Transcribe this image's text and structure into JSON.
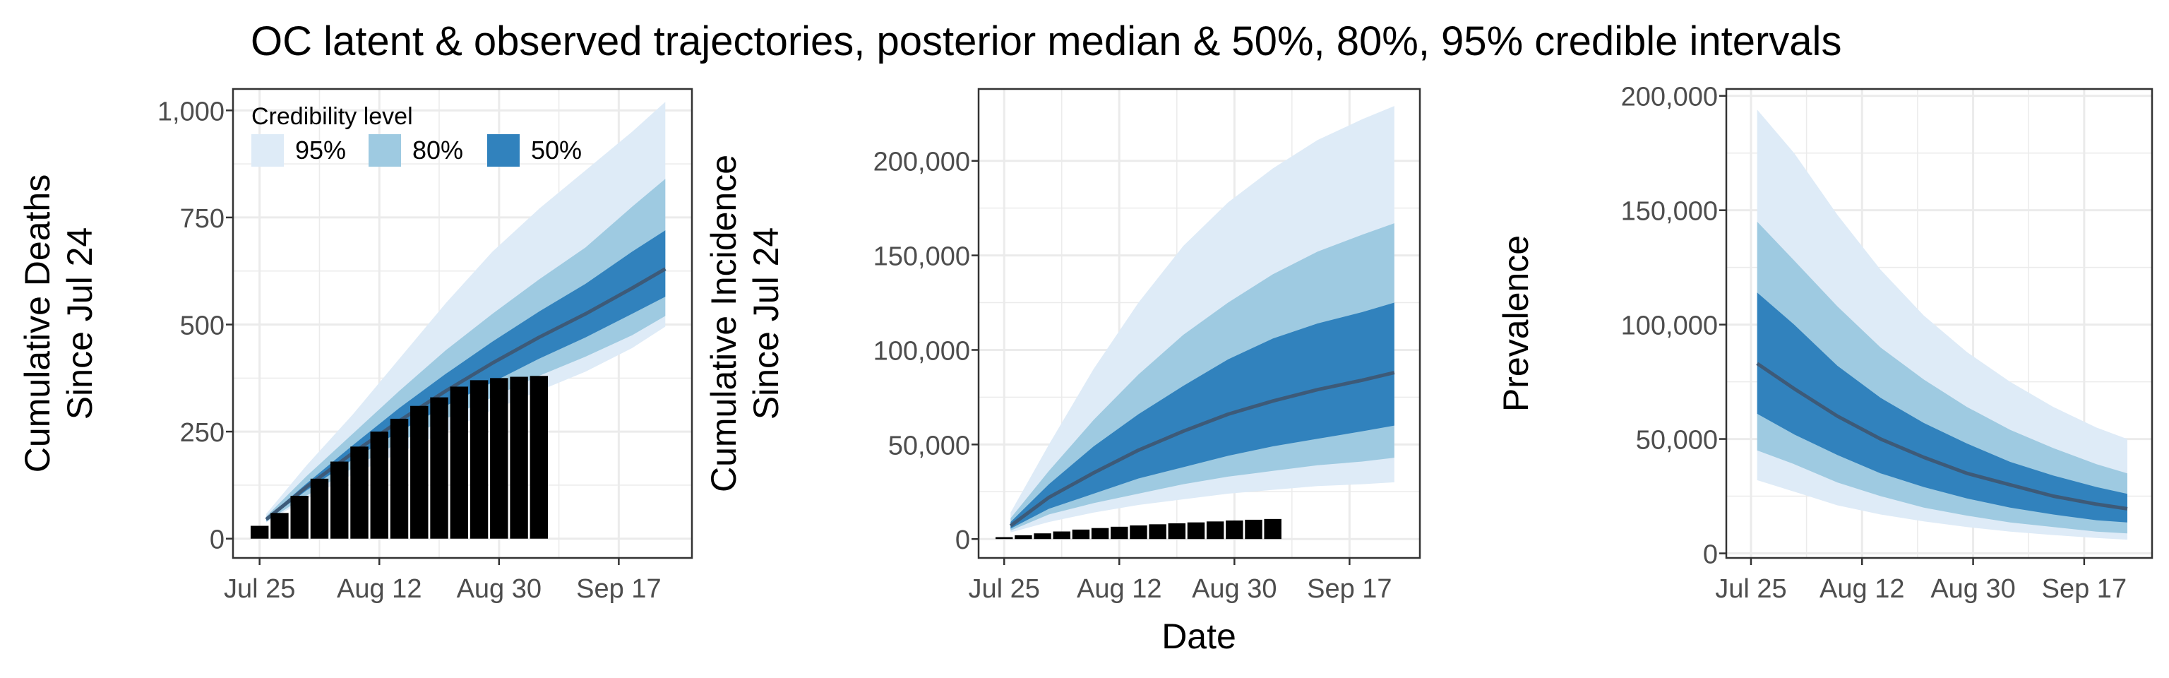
{
  "figure": {
    "title": "OC latent & observed trajectories, posterior median & 50%, 80%, 95% credible intervals",
    "xlabel": "Date"
  },
  "legend": {
    "title": "Credibility level",
    "items": [
      {
        "label": "95%",
        "color": "#deebf7"
      },
      {
        "label": "80%",
        "color": "#9ecae1"
      },
      {
        "label": "50%",
        "color": "#3182bd"
      }
    ]
  },
  "colors": {
    "band95": "#deebf7",
    "band80": "#9ecae1",
    "band50": "#3182bd",
    "median": "#3d5a78",
    "observed_bars": "#000000",
    "grid": "#ebebeb",
    "panel_border": "#333333"
  },
  "chart_data": [
    {
      "type": "area",
      "ylabel": [
        "Cumulative Deaths",
        "Since Jul 24"
      ],
      "legend_position": "top-left",
      "x_ticks": [
        "Jul 25",
        "Aug 12",
        "Aug 30",
        "Sep 17"
      ],
      "y_ticks": [
        "0",
        "250",
        "500",
        "750",
        "1,000"
      ],
      "y_tick_values": [
        0,
        250,
        500,
        750,
        1000
      ],
      "ylim": [
        -45,
        1050
      ],
      "x": [
        "Jul 26",
        "Aug 1",
        "Aug 8",
        "Aug 15",
        "Aug 22",
        "Aug 29",
        "Sep 5",
        "Sep 12",
        "Sep 19",
        "Sep 24"
      ],
      "median": [
        45,
        120,
        200,
        275,
        345,
        410,
        470,
        525,
        585,
        630
      ],
      "ci50": [
        [
          42,
          48
        ],
        [
          112,
          128
        ],
        [
          185,
          218
        ],
        [
          250,
          305
        ],
        [
          310,
          385
        ],
        [
          365,
          460
        ],
        [
          420,
          530
        ],
        [
          470,
          595
        ],
        [
          525,
          670
        ],
        [
          565,
          720
        ]
      ],
      "ci80": [
        [
          40,
          52
        ],
        [
          100,
          145
        ],
        [
          165,
          245
        ],
        [
          225,
          345
        ],
        [
          280,
          440
        ],
        [
          330,
          525
        ],
        [
          380,
          605
        ],
        [
          425,
          680
        ],
        [
          475,
          775
        ],
        [
          520,
          840
        ]
      ],
      "ci95": [
        [
          38,
          58
        ],
        [
          92,
          170
        ],
        [
          150,
          290
        ],
        [
          200,
          420
        ],
        [
          250,
          550
        ],
        [
          300,
          670
        ],
        [
          345,
          770
        ],
        [
          390,
          860
        ],
        [
          445,
          950
        ],
        [
          495,
          1020
        ]
      ],
      "observed": {
        "x": [
          "Jul 25",
          "Jul 28",
          "Jul 31",
          "Aug 3",
          "Aug 6",
          "Aug 9",
          "Aug 12",
          "Aug 15",
          "Aug 18",
          "Aug 21",
          "Aug 24",
          "Aug 27",
          "Aug 30",
          "Sep 2",
          "Sep 5"
        ],
        "values": [
          30,
          60,
          100,
          140,
          180,
          215,
          250,
          280,
          310,
          330,
          355,
          370,
          375,
          378,
          380
        ]
      }
    },
    {
      "type": "area",
      "ylabel": [
        "Cumulative Incidence",
        "Since Jul 24"
      ],
      "x_ticks": [
        "Jul 25",
        "Aug 12",
        "Aug 30",
        "Sep 17"
      ],
      "y_ticks": [
        "0",
        "50,000",
        "100,000",
        "150,000",
        "200,000"
      ],
      "y_tick_values": [
        0,
        50000,
        100000,
        150000,
        200000
      ],
      "ylim": [
        -10000,
        238000
      ],
      "x": [
        "Jul 26",
        "Aug 1",
        "Aug 8",
        "Aug 15",
        "Aug 22",
        "Aug 29",
        "Sep 5",
        "Sep 12",
        "Sep 19",
        "Sep 24"
      ],
      "median": [
        7000,
        22000,
        35000,
        47000,
        57000,
        66000,
        73000,
        79000,
        84000,
        88000
      ],
      "ci50": [
        [
          5500,
          9000
        ],
        [
          16000,
          29000
        ],
        [
          24000,
          49000
        ],
        [
          32000,
          66000
        ],
        [
          38000,
          81000
        ],
        [
          44000,
          95000
        ],
        [
          49000,
          106000
        ],
        [
          53000,
          114000
        ],
        [
          57000,
          120000
        ],
        [
          60000,
          125000
        ]
      ],
      "ci80": [
        [
          4500,
          11000
        ],
        [
          13000,
          36000
        ],
        [
          19000,
          63000
        ],
        [
          24000,
          87000
        ],
        [
          29000,
          108000
        ],
        [
          33000,
          125000
        ],
        [
          36000,
          140000
        ],
        [
          39000,
          152000
        ],
        [
          41000,
          161000
        ],
        [
          43000,
          167000
        ]
      ],
      "ci95": [
        [
          3500,
          14000
        ],
        [
          9000,
          50000
        ],
        [
          14000,
          90000
        ],
        [
          18000,
          125000
        ],
        [
          21000,
          155000
        ],
        [
          24000,
          178000
        ],
        [
          26000,
          196000
        ],
        [
          28000,
          211000
        ],
        [
          29000,
          222000
        ],
        [
          30000,
          229000
        ]
      ],
      "observed": {
        "x": [
          "Jul 25",
          "Jul 28",
          "Jul 31",
          "Aug 3",
          "Aug 6",
          "Aug 9",
          "Aug 12",
          "Aug 15",
          "Aug 18",
          "Aug 21",
          "Aug 24",
          "Aug 27",
          "Aug 30",
          "Sep 2",
          "Sep 5"
        ],
        "values": [
          1000,
          2000,
          3000,
          4000,
          5000,
          5800,
          6500,
          7200,
          7800,
          8300,
          8800,
          9300,
          9800,
          10200,
          10600
        ]
      }
    },
    {
      "type": "area",
      "ylabel": [
        "Prevalence"
      ],
      "x_ticks": [
        "Jul 25",
        "Aug 12",
        "Aug 30",
        "Sep 17"
      ],
      "y_ticks": [
        "0",
        "50,000",
        "100,000",
        "150,000",
        "200,000"
      ],
      "y_tick_values": [
        0,
        50000,
        100000,
        150000,
        200000
      ],
      "ylim": [
        -2000,
        203000
      ],
      "x": [
        "Jul 26",
        "Aug 1",
        "Aug 8",
        "Aug 15",
        "Aug 22",
        "Aug 29",
        "Sep 5",
        "Sep 12",
        "Sep 19",
        "Sep 24"
      ],
      "median": [
        83000,
        72000,
        60000,
        50000,
        42000,
        35000,
        30000,
        25000,
        21500,
        19500
      ],
      "ci50": [
        [
          61000,
          114000
        ],
        [
          52000,
          100000
        ],
        [
          43000,
          82000
        ],
        [
          35000,
          68000
        ],
        [
          29000,
          57000
        ],
        [
          24000,
          48000
        ],
        [
          20000,
          40000
        ],
        [
          17000,
          34000
        ],
        [
          14500,
          29000
        ],
        [
          13500,
          26000
        ]
      ],
      "ci80": [
        [
          45000,
          145000
        ],
        [
          39000,
          128000
        ],
        [
          31000,
          108000
        ],
        [
          25000,
          90000
        ],
        [
          20000,
          76000
        ],
        [
          16500,
          64000
        ],
        [
          13500,
          54000
        ],
        [
          11500,
          46000
        ],
        [
          9500,
          39000
        ],
        [
          8700,
          35000
        ]
      ],
      "ci95": [
        [
          32000,
          194000
        ],
        [
          27000,
          175000
        ],
        [
          21000,
          148000
        ],
        [
          17000,
          124000
        ],
        [
          14000,
          104000
        ],
        [
          11500,
          88000
        ],
        [
          9500,
          75000
        ],
        [
          8000,
          64000
        ],
        [
          6700,
          55000
        ],
        [
          6000,
          50000
        ]
      ]
    }
  ]
}
